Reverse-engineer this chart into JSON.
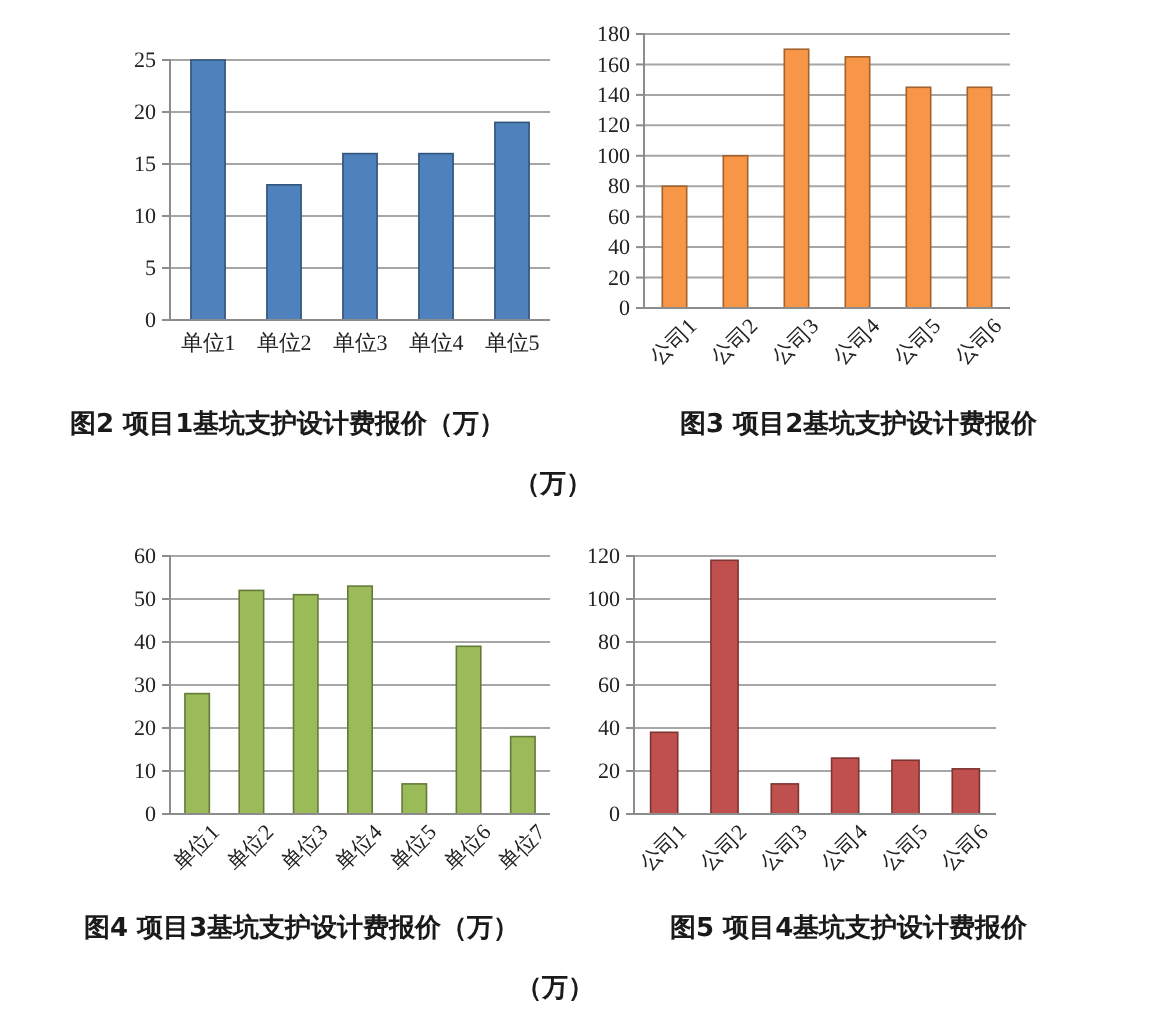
{
  "chart_data": [
    {
      "type": "bar",
      "title": "图2 项目1基坑支护设计费报价（万）",
      "categories": [
        "单位1",
        "单位2",
        "单位3",
        "单位4",
        "单位5"
      ],
      "values": [
        25,
        13,
        16,
        16,
        19
      ],
      "color": "#4f81bd",
      "ylim": [
        0,
        25
      ],
      "yticks": [
        0,
        5,
        10,
        15,
        20,
        25
      ],
      "grid": "y"
    },
    {
      "type": "bar",
      "title": "图3 项目2基坑支护设计费报价（万）",
      "categories": [
        "公司1",
        "公司2",
        "公司3",
        "公司4",
        "公司5",
        "公司6"
      ],
      "values": [
        80,
        100,
        170,
        165,
        145,
        145
      ],
      "color": "#f79646",
      "ylim": [
        0,
        180
      ],
      "yticks": [
        0,
        20,
        40,
        60,
        80,
        100,
        120,
        140,
        160,
        180
      ],
      "grid": "y"
    },
    {
      "type": "bar",
      "title": "图4 项目3基坑支护设计费报价（万）",
      "categories": [
        "单位1",
        "单位2",
        "单位3",
        "单位4",
        "单位5",
        "单位6",
        "单位7"
      ],
      "values": [
        28,
        52,
        51,
        53,
        7,
        39,
        18
      ],
      "color": "#9bbb59",
      "ylim": [
        0,
        60
      ],
      "yticks": [
        0,
        10,
        20,
        30,
        40,
        50,
        60
      ],
      "grid": "y"
    },
    {
      "type": "bar",
      "title": "图5 项目4基坑支护设计费报价（万）",
      "categories": [
        "公司1",
        "公司2",
        "公司3",
        "公司4",
        "公司5",
        "公司6"
      ],
      "values": [
        38,
        118,
        14,
        26,
        25,
        21
      ],
      "color": "#c0504d",
      "ylim": [
        0,
        120
      ],
      "yticks": [
        0,
        20,
        40,
        60,
        80,
        100,
        120
      ],
      "grid": "y"
    }
  ]
}
